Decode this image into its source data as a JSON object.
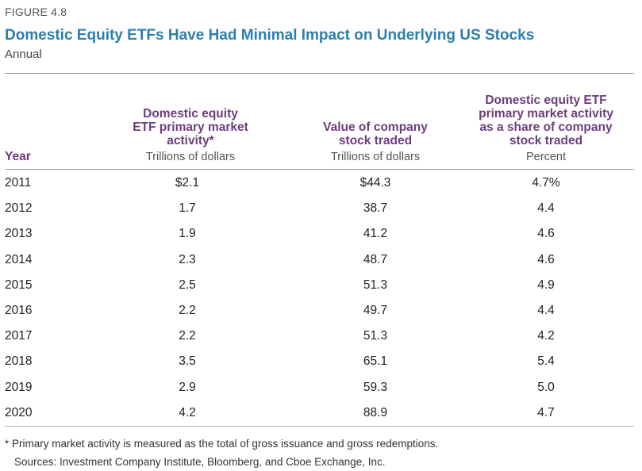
{
  "figure_label": "FIGURE 4.8",
  "chart_data": {
    "type": "table",
    "title": "Domestic Equity ETFs Have Had Minimal Impact on Underlying US Stocks",
    "subtitle": "Annual",
    "columns": [
      {
        "key": "year",
        "header": "Year",
        "unit": ""
      },
      {
        "key": "etf_activity",
        "header_lines": [
          "Domestic equity",
          "ETF primary market",
          "activity*"
        ],
        "unit": "Trillions of dollars"
      },
      {
        "key": "value_traded",
        "header_lines": [
          "Value of company",
          "stock traded"
        ],
        "unit": "Trillions of dollars"
      },
      {
        "key": "share",
        "header_lines": [
          "Domestic equity ETF",
          "primary market activity",
          "as a share of company",
          "stock traded"
        ],
        "unit": "Percent"
      }
    ],
    "rows": [
      {
        "year": "2011",
        "etf_activity": "$2.1",
        "value_traded": "$44.3",
        "share": "4.7%"
      },
      {
        "year": "2012",
        "etf_activity": "1.7",
        "value_traded": "38.7",
        "share": "4.4"
      },
      {
        "year": "2013",
        "etf_activity": "1.9",
        "value_traded": "41.2",
        "share": "4.6"
      },
      {
        "year": "2014",
        "etf_activity": "2.3",
        "value_traded": "48.7",
        "share": "4.6"
      },
      {
        "year": "2015",
        "etf_activity": "2.5",
        "value_traded": "51.3",
        "share": "4.9"
      },
      {
        "year": "2016",
        "etf_activity": "2.2",
        "value_traded": "49.7",
        "share": "4.4"
      },
      {
        "year": "2017",
        "etf_activity": "2.2",
        "value_traded": "51.3",
        "share": "4.2"
      },
      {
        "year": "2018",
        "etf_activity": "3.5",
        "value_traded": "65.1",
        "share": "5.4"
      },
      {
        "year": "2019",
        "etf_activity": "2.9",
        "value_traded": "59.3",
        "share": "5.0"
      },
      {
        "year": "2020",
        "etf_activity": "4.2",
        "value_traded": "88.9",
        "share": "4.7"
      }
    ]
  },
  "footnote": "* Primary market activity is measured as the total of gross issuance and gross redemptions.",
  "sources": "Sources: Investment Company Institute, Bloomberg, and Cboe Exchange, Inc."
}
